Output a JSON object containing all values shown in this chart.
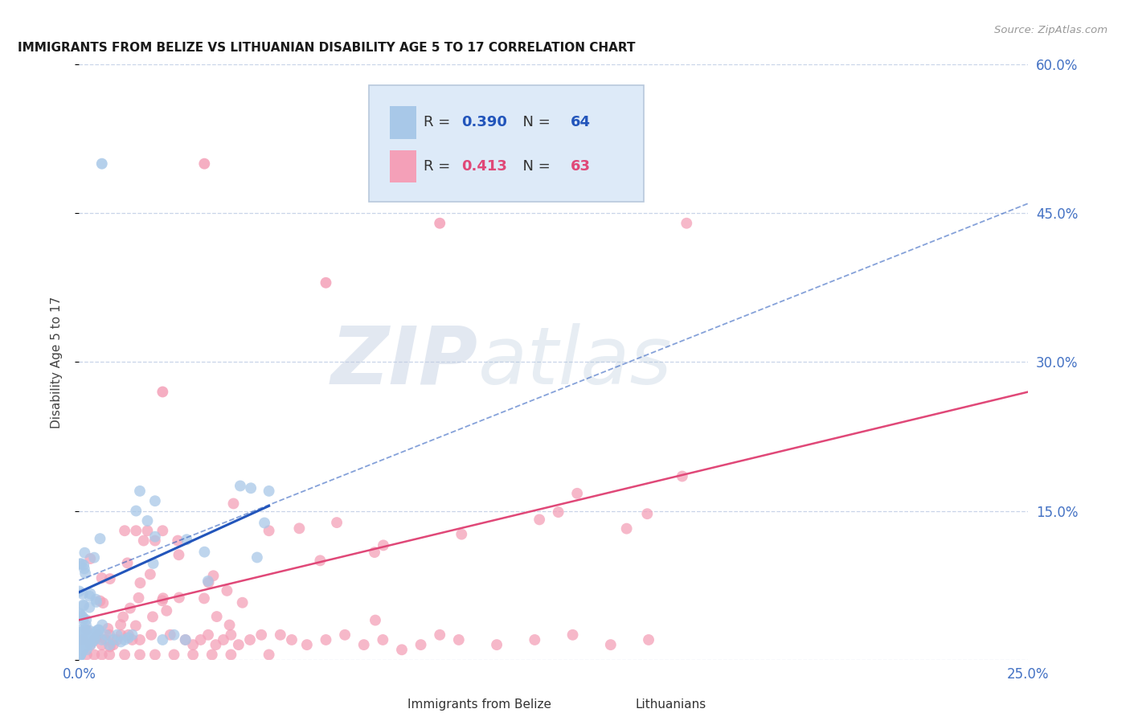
{
  "title": "IMMIGRANTS FROM BELIZE VS LITHUANIAN DISABILITY AGE 5 TO 17 CORRELATION CHART",
  "source": "Source: ZipAtlas.com",
  "ylabel": "Disability Age 5 to 17",
  "xlim": [
    0.0,
    0.25
  ],
  "ylim": [
    0.0,
    0.6
  ],
  "x_tick_positions": [
    0.0,
    0.05,
    0.1,
    0.15,
    0.2,
    0.25
  ],
  "x_tick_labels": [
    "0.0%",
    "",
    "",
    "",
    "",
    "25.0%"
  ],
  "y_tick_positions": [
    0.0,
    0.15,
    0.3,
    0.45,
    0.6
  ],
  "y_tick_labels": [
    "",
    "15.0%",
    "30.0%",
    "45.0%",
    "60.0%"
  ],
  "belize_color": "#a8c8e8",
  "belize_line_color": "#2255bb",
  "lithuanian_color": "#f4a0b8",
  "lithuanian_line_color": "#e04878",
  "belize_R": "0.390",
  "belize_N": "64",
  "lithuanian_R": "0.413",
  "lithuanian_N": "63",
  "watermark_zip": "ZIP",
  "watermark_atlas": "atlas",
  "legend_box_color": "#ddeaf8",
  "legend_border_color": "#b8c8dc",
  "background_color": "#ffffff",
  "grid_color": "#c8d4e8",
  "tick_color": "#4472c4",
  "ylabel_color": "#444444",
  "belize_x": [
    0.0002,
    0.0005,
    0.001,
    0.0015,
    0.001,
    0.0008,
    0.0003,
    0.0006,
    0.0012,
    0.0018,
    0.0004,
    0.0007,
    0.0009,
    0.0011,
    0.0013,
    0.0016,
    0.0002,
    0.0005,
    0.0008,
    0.001,
    0.0015,
    0.0003,
    0.0006,
    0.0009,
    0.0012,
    0.0016,
    0.002,
    0.0022,
    0.0025,
    0.003,
    0.0035,
    0.004,
    0.0045,
    0.005,
    0.006,
    0.007,
    0.008,
    0.009,
    0.01,
    0.011,
    0.012,
    0.013,
    0.014,
    0.015,
    0.016,
    0.018,
    0.02,
    0.022,
    0.025,
    0.028,
    0.0001,
    0.0003,
    0.0007,
    0.0011,
    0.0014,
    0.0017,
    0.0021,
    0.0026,
    0.0031,
    0.0038,
    0.0043,
    0.0052,
    0.0061,
    0.05
  ],
  "belize_y": [
    0.03,
    0.02,
    0.025,
    0.03,
    0.04,
    0.01,
    0.005,
    0.015,
    0.02,
    0.035,
    0.005,
    0.01,
    0.015,
    0.02,
    0.025,
    0.03,
    0.005,
    0.01,
    0.015,
    0.02,
    0.025,
    0.005,
    0.008,
    0.012,
    0.018,
    0.022,
    0.01,
    0.015,
    0.02,
    0.015,
    0.018,
    0.02,
    0.025,
    0.03,
    0.02,
    0.025,
    0.015,
    0.02,
    0.025,
    0.018,
    0.02,
    0.022,
    0.025,
    0.15,
    0.17,
    0.14,
    0.16,
    0.02,
    0.025,
    0.02,
    0.003,
    0.005,
    0.008,
    0.01,
    0.012,
    0.015,
    0.018,
    0.02,
    0.022,
    0.025,
    0.028,
    0.03,
    0.035,
    0.17
  ],
  "lith_x": [
    0.001,
    0.002,
    0.003,
    0.004,
    0.005,
    0.006,
    0.007,
    0.008,
    0.009,
    0.01,
    0.011,
    0.012,
    0.013,
    0.014,
    0.015,
    0.016,
    0.017,
    0.018,
    0.019,
    0.02,
    0.022,
    0.024,
    0.026,
    0.028,
    0.03,
    0.032,
    0.034,
    0.036,
    0.038,
    0.04,
    0.042,
    0.045,
    0.048,
    0.05,
    0.053,
    0.056,
    0.06,
    0.065,
    0.07,
    0.075,
    0.08,
    0.085,
    0.09,
    0.095,
    0.1,
    0.11,
    0.12,
    0.13,
    0.14,
    0.15,
    0.002,
    0.004,
    0.006,
    0.008,
    0.012,
    0.016,
    0.02,
    0.025,
    0.03,
    0.035,
    0.04,
    0.05,
    0.16
  ],
  "lith_y": [
    0.02,
    0.03,
    0.015,
    0.02,
    0.025,
    0.015,
    0.02,
    0.025,
    0.015,
    0.02,
    0.025,
    0.13,
    0.025,
    0.02,
    0.13,
    0.02,
    0.12,
    0.13,
    0.025,
    0.12,
    0.13,
    0.025,
    0.12,
    0.02,
    0.015,
    0.02,
    0.025,
    0.015,
    0.02,
    0.025,
    0.015,
    0.02,
    0.025,
    0.13,
    0.025,
    0.02,
    0.015,
    0.02,
    0.025,
    0.015,
    0.02,
    0.01,
    0.015,
    0.025,
    0.02,
    0.015,
    0.02,
    0.025,
    0.015,
    0.02,
    0.005,
    0.005,
    0.005,
    0.005,
    0.005,
    0.005,
    0.005,
    0.005,
    0.005,
    0.005,
    0.005,
    0.005,
    0.44
  ],
  "belize_line_x0": 0.0,
  "belize_line_x1": 0.05,
  "belize_line_y0": 0.068,
  "belize_line_y1": 0.155,
  "lith_line_x0": 0.0,
  "lith_line_x1": 0.25,
  "lith_line_y0": 0.04,
  "lith_line_y1": 0.27,
  "dashed_line_x0": 0.0,
  "dashed_line_x1": 0.25,
  "dashed_line_y0": 0.08,
  "dashed_line_y1": 0.46
}
